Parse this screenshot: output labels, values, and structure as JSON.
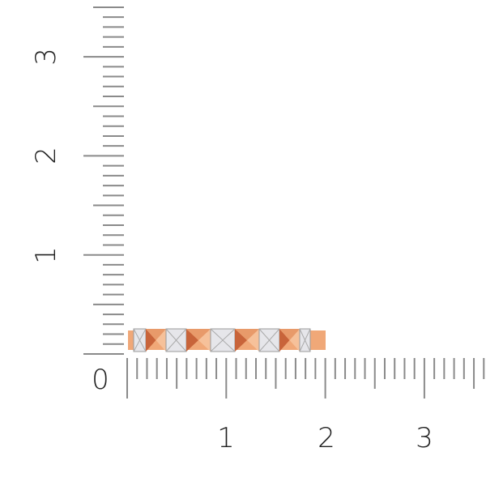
{
  "ruler": {
    "unit_labels_vertical": [
      "1",
      "2",
      "3"
    ],
    "unit_labels_horizontal": [
      "1",
      "2",
      "3"
    ],
    "origin_label": "0",
    "subdivisions": 10,
    "tick_color": "#8a8a8a"
  },
  "product": {
    "type": "ring band with alternating gold pyramids and diamonds",
    "metal_color": "#f0a878",
    "metal_shadow": "#c8643a",
    "stone_color": "#e6e6ea"
  }
}
